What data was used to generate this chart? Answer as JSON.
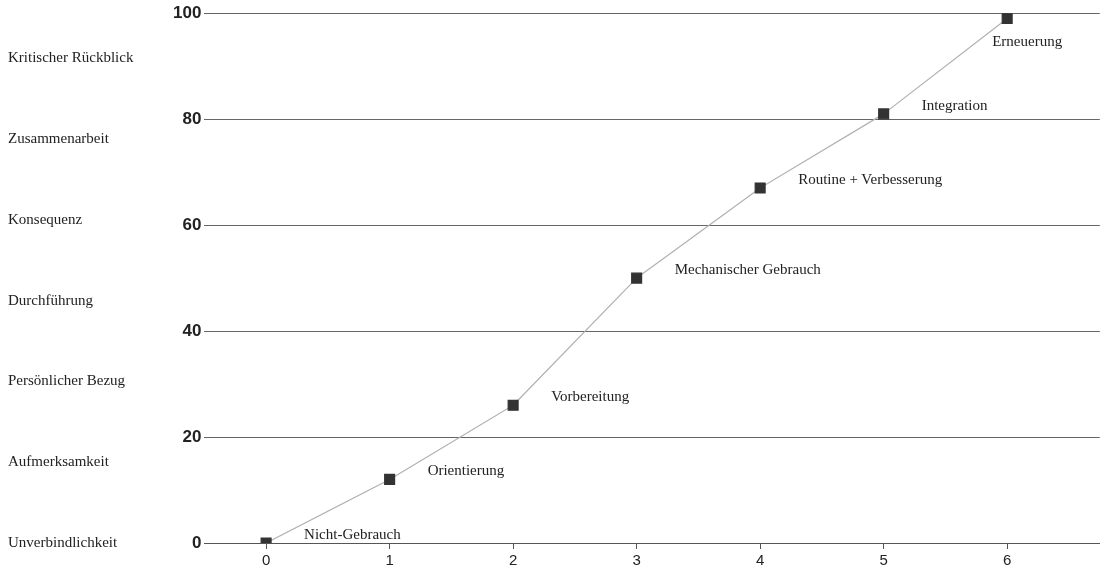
{
  "chart_data": {
    "type": "line",
    "x": [
      0,
      1,
      2,
      3,
      4,
      5,
      6
    ],
    "series": [
      {
        "color": "#333333",
        "values": [
          0,
          12,
          26,
          50,
          67,
          81,
          99
        ]
      }
    ],
    "xlim": [
      -0.5,
      6.75
    ],
    "xticks": [
      0,
      1,
      2,
      3,
      4,
      5,
      6
    ],
    "ylim": [
      0,
      100
    ],
    "yticks": [
      0,
      20,
      40,
      60,
      80,
      100
    ],
    "grid": "y",
    "legend": false,
    "marker": "square",
    "line_style": "solid",
    "annotations": [
      {
        "text": "Nicht-Gebrauch",
        "x": 0,
        "y": 0
      },
      {
        "text": "Orientierung",
        "x": 1,
        "y": 12
      },
      {
        "text": "Vorbereitung",
        "x": 2,
        "y": 26
      },
      {
        "text": "Mechanischer Gebrauch",
        "x": 3,
        "y": 50
      },
      {
        "text": "Routine + Verbesserung",
        "x": 4,
        "y": 67
      },
      {
        "text": "Integration",
        "x": 5,
        "y": 81
      },
      {
        "text": "Erneuerung",
        "x": 6,
        "y": 99
      },
      "Kritischer Rückblick",
      "Zusammenarbeit",
      "Konsequenz",
      "Durchführung",
      "Persönlicher Bezug",
      "Aufmerksamkeit",
      "Unverbindlichkeit"
    ]
  }
}
